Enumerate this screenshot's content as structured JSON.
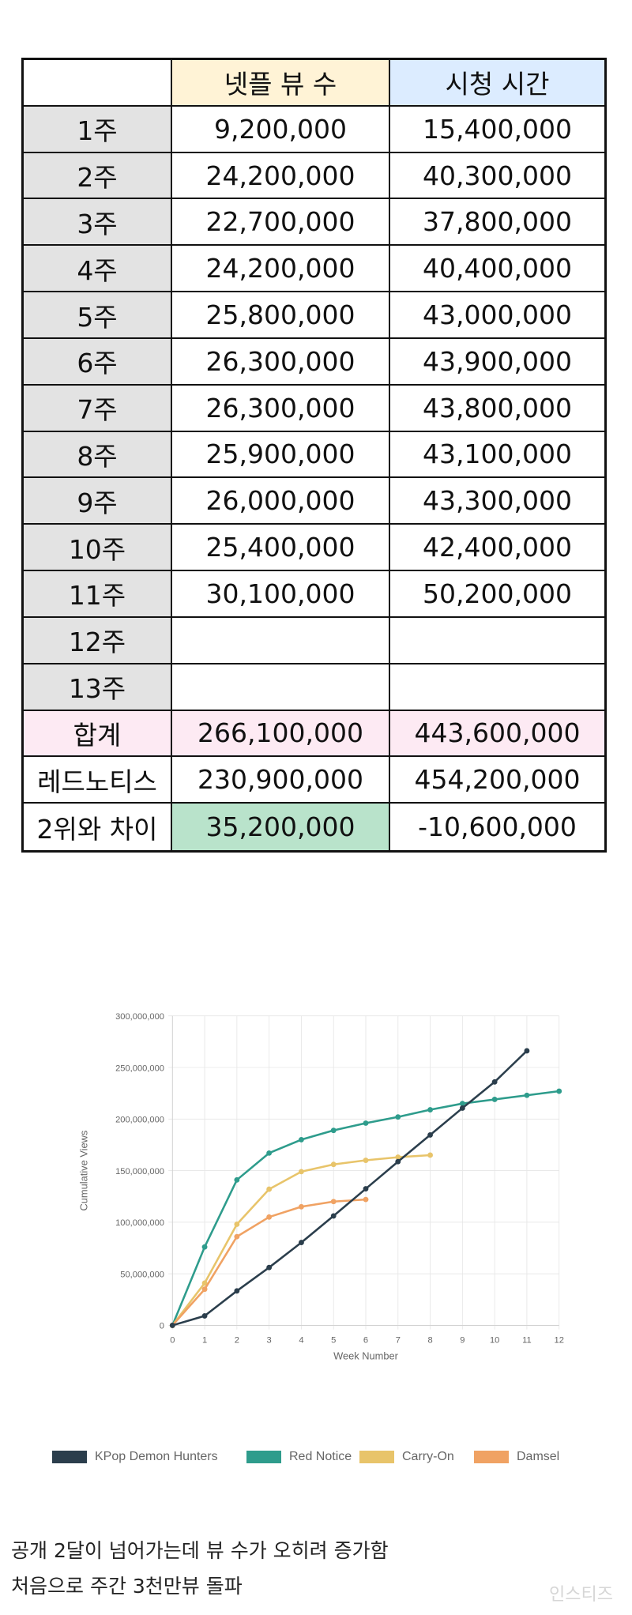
{
  "table": {
    "headers": [
      "",
      "넷플 뷰 수",
      "시청 시간"
    ],
    "rows": [
      [
        "1주",
        "9,200,000",
        "15,400,000"
      ],
      [
        "2주",
        "24,200,000",
        "40,300,000"
      ],
      [
        "3주",
        "22,700,000",
        "37,800,000"
      ],
      [
        "4주",
        "24,200,000",
        "40,400,000"
      ],
      [
        "5주",
        "25,800,000",
        "43,000,000"
      ],
      [
        "6주",
        "26,300,000",
        "43,900,000"
      ],
      [
        "7주",
        "26,300,000",
        "43,800,000"
      ],
      [
        "8주",
        "25,900,000",
        "43,100,000"
      ],
      [
        "9주",
        "26,000,000",
        "43,300,000"
      ],
      [
        "10주",
        "25,400,000",
        "42,400,000"
      ],
      [
        "11주",
        "30,100,000",
        "50,200,000"
      ],
      [
        "12주",
        "",
        ""
      ],
      [
        "13주",
        "",
        ""
      ],
      [
        "합계",
        "266,100,000",
        "443,600,000"
      ],
      [
        "레드노티스",
        "230,900,000",
        "454,200,000"
      ],
      [
        "2위와 차이",
        "35,200,000",
        "-10,600,000"
      ]
    ]
  },
  "chart_data": {
    "type": "line",
    "xlabel": "Week Number",
    "ylabel": "Cumulative Views",
    "xlim": [
      0,
      12
    ],
    "ylim": [
      0,
      300000000
    ],
    "x_ticks": [
      "0",
      "1",
      "2",
      "3",
      "4",
      "5",
      "6",
      "7",
      "8",
      "9",
      "10",
      "11",
      "12"
    ],
    "y_ticks": [
      "0",
      "50,000,000",
      "100,000,000",
      "150,000,000",
      "200,000,000",
      "250,000,000",
      "300,000,000"
    ],
    "grid": true,
    "legend_position": "bottom",
    "series": [
      {
        "name": "KPop Demon Hunters",
        "color": "#2b3e4c",
        "x": [
          0,
          1,
          2,
          3,
          4,
          5,
          6,
          7,
          8,
          9,
          10,
          11
        ],
        "values": [
          0,
          9200000,
          33400000,
          56100000,
          80300000,
          106100000,
          132400000,
          158700000,
          184600000,
          210600000,
          236000000,
          266100000
        ]
      },
      {
        "name": "Red Notice",
        "color": "#2e9c8c",
        "x": [
          0,
          1,
          2,
          3,
          4,
          5,
          6,
          7,
          8,
          9,
          10,
          11,
          12
        ],
        "values": [
          0,
          76000000,
          141000000,
          167000000,
          180000000,
          189000000,
          196000000,
          202000000,
          209000000,
          215000000,
          219000000,
          223000000,
          227000000
        ]
      },
      {
        "name": "Carry-On",
        "color": "#e8c46a",
        "x": [
          0,
          1,
          2,
          3,
          4,
          5,
          6,
          7,
          8
        ],
        "values": [
          0,
          41000000,
          98000000,
          132000000,
          149000000,
          156000000,
          160000000,
          163000000,
          165000000
        ]
      },
      {
        "name": "Damsel",
        "color": "#f0a263",
        "x": [
          0,
          1,
          2,
          3,
          4,
          5,
          6
        ],
        "values": [
          0,
          35000000,
          86000000,
          105000000,
          115000000,
          120000000,
          122000000
        ]
      }
    ]
  },
  "caption": {
    "line1": "공개 2달이 넘어가는데 뷰 수가 오히려 증가함",
    "line2": "처음으로 주간 3천만뷰 돌파"
  },
  "watermark": "인스티즈"
}
